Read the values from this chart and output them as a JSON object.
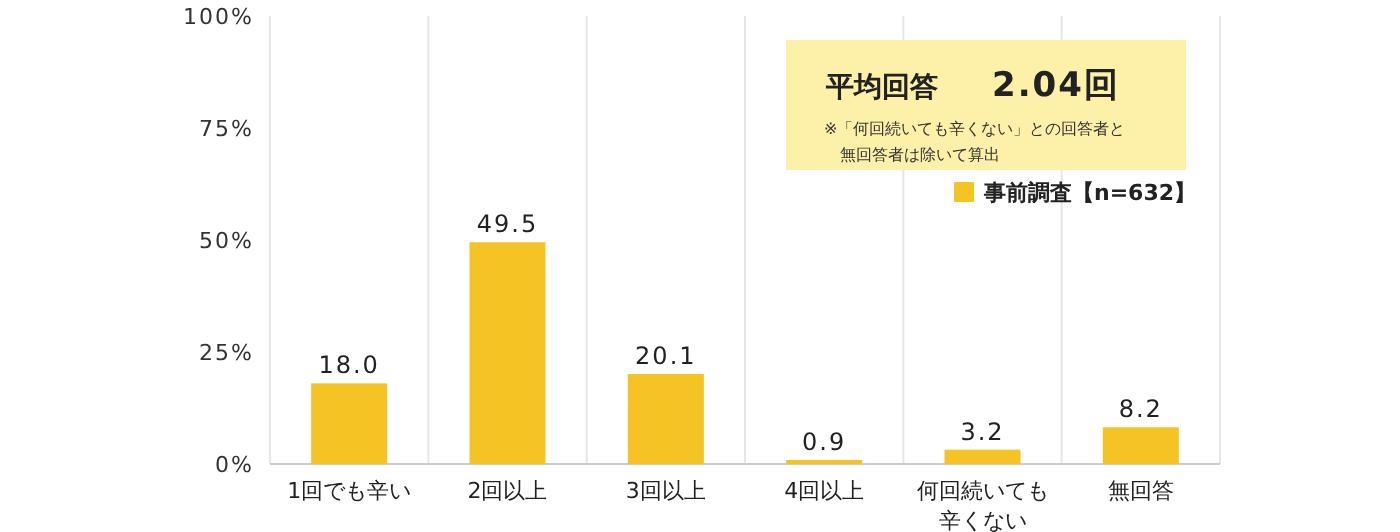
{
  "chart_data": {
    "type": "bar",
    "categories": [
      "1回でも辛い",
      "2回以上",
      "3回以上",
      "4回以上",
      "何回続いても辛くない",
      "無回答"
    ],
    "series": [
      {
        "name": "事前調査【n=632】",
        "color": "#f5c324",
        "values": [
          18.0,
          49.5,
          20.1,
          0.9,
          3.2,
          8.2
        ],
        "value_labels": [
          "18.0",
          "49.5",
          "20.1",
          "0.9",
          "3.2",
          "8.2"
        ]
      }
    ],
    "ylim": [
      0,
      100
    ],
    "yticks": [
      {
        "value": 0,
        "label": "0%"
      },
      {
        "value": 25,
        "label": "25%"
      },
      {
        "value": 50,
        "label": "50%"
      },
      {
        "value": 75,
        "label": "75%"
      },
      {
        "value": 100,
        "label": "100%"
      }
    ],
    "grid": "x",
    "legend": "top right",
    "annotations": [
      "平均回答",
      "2.04回",
      "※「何回続いても辛くない」との回答者と",
      "無回答者は除いて算出"
    ]
  }
}
